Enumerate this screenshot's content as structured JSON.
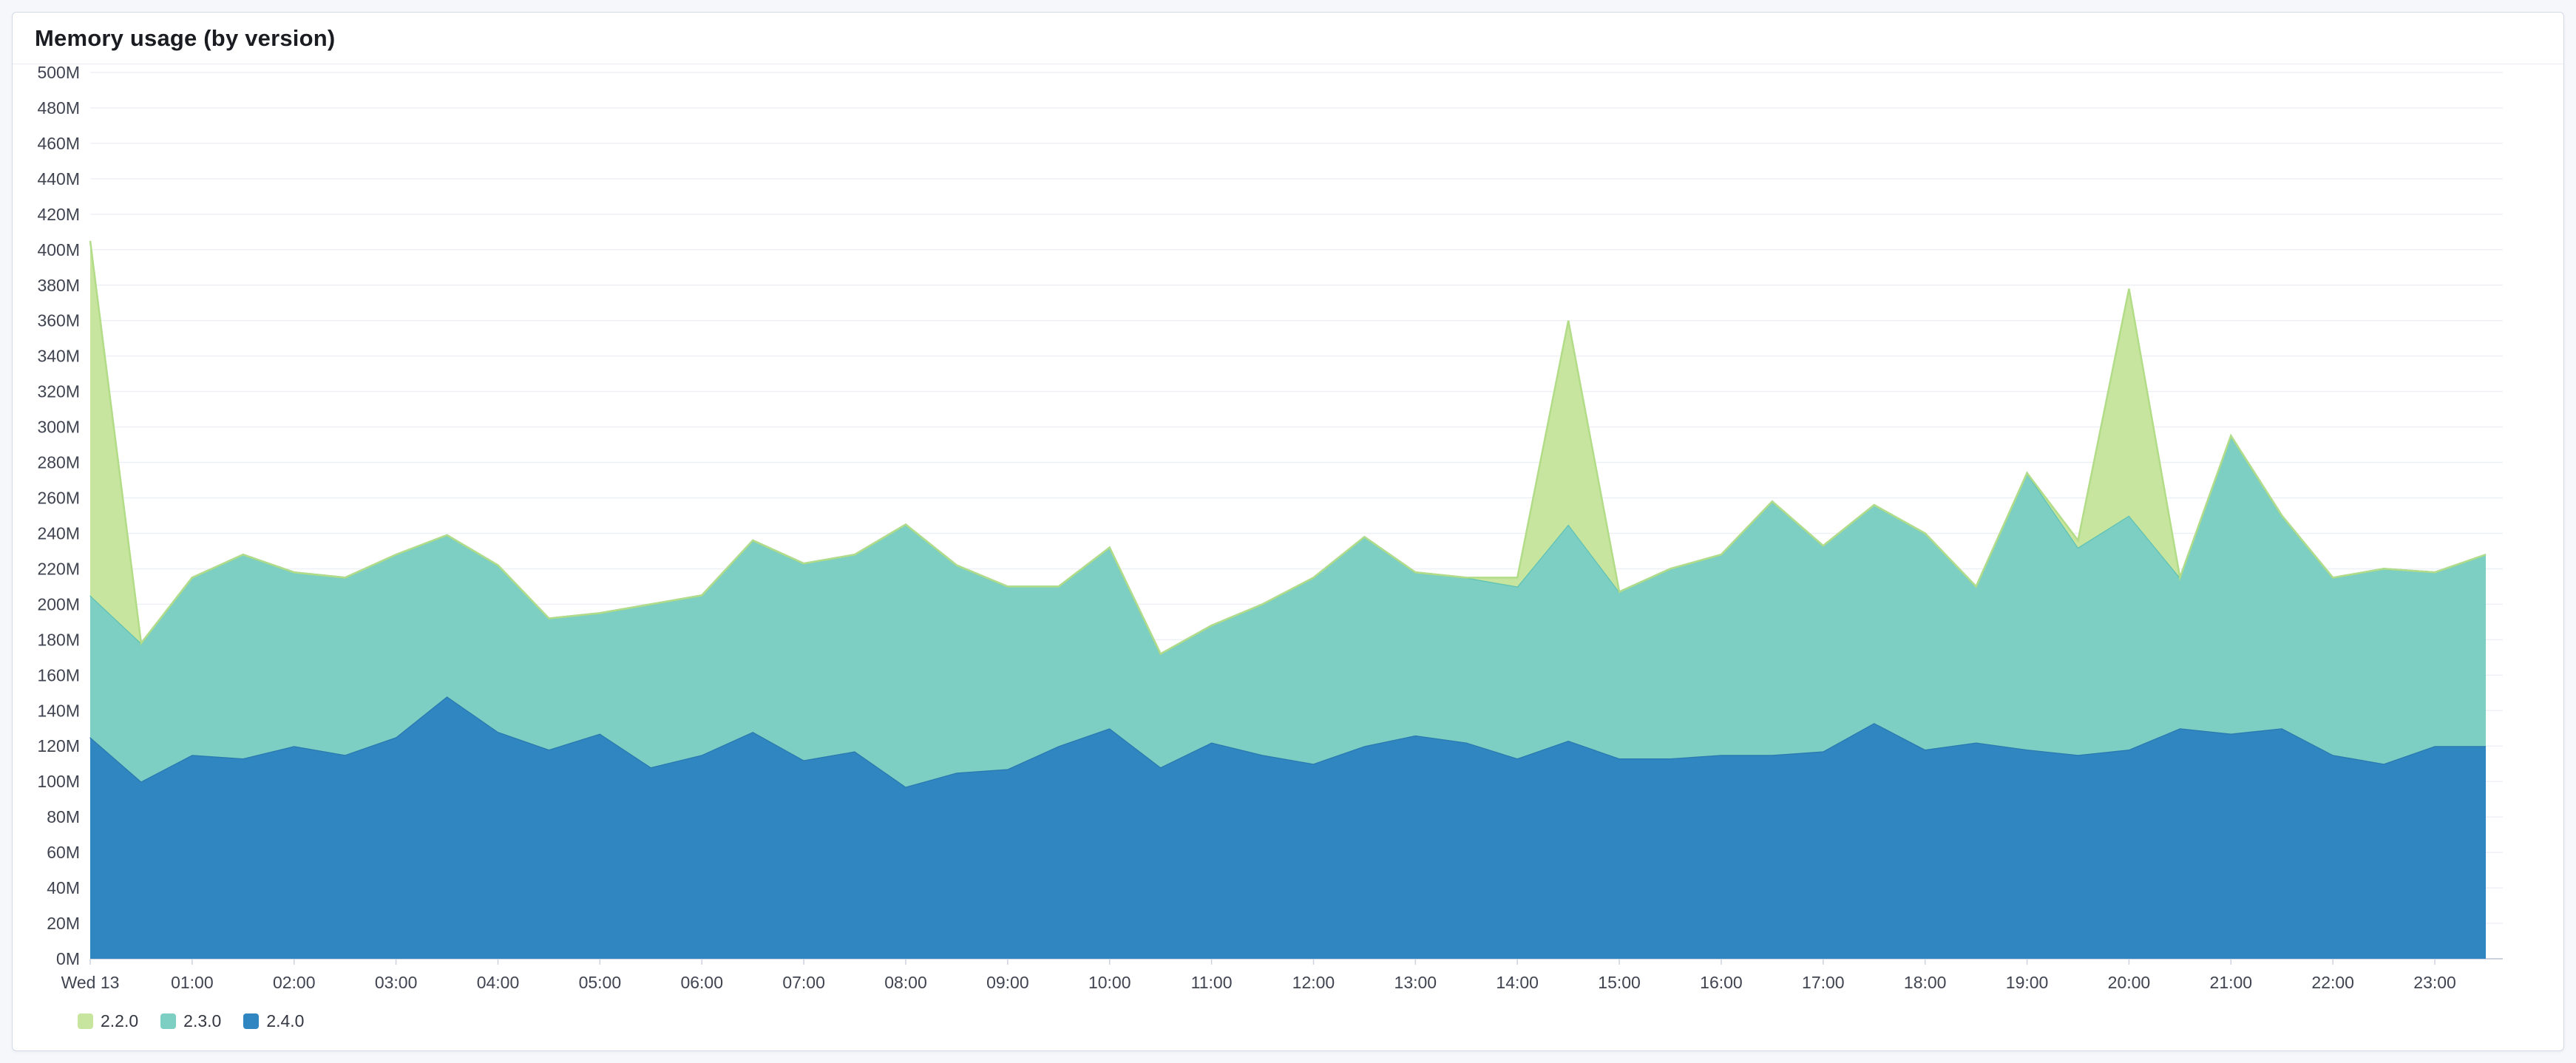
{
  "page": {
    "background": "#f5f7fa",
    "panel_background": "#ffffff",
    "panel_border": "#d3dae6"
  },
  "panel": {
    "title": "Memory usage (by version)"
  },
  "chart_data": {
    "type": "area",
    "stacked": true,
    "title": "Memory usage (by version)",
    "x_interval_minutes": 30,
    "x_tick_labels": [
      "Wed 13",
      "01:00",
      "02:00",
      "03:00",
      "04:00",
      "05:00",
      "06:00",
      "07:00",
      "08:00",
      "09:00",
      "10:00",
      "11:00",
      "12:00",
      "13:00",
      "14:00",
      "15:00",
      "16:00",
      "17:00",
      "18:00",
      "19:00",
      "20:00",
      "21:00",
      "22:00",
      "23:00"
    ],
    "y_ticks": [
      "0M",
      "20M",
      "40M",
      "60M",
      "80M",
      "100M",
      "120M",
      "140M",
      "160M",
      "180M",
      "200M",
      "220M",
      "240M",
      "260M",
      "280M",
      "300M",
      "320M",
      "340M",
      "360M",
      "380M",
      "400M",
      "420M",
      "440M",
      "460M",
      "480M",
      "500M"
    ],
    "ylim": [
      0,
      500
    ],
    "y_unit": "M",
    "grid": "horizontal",
    "legend_position": "bottom-left",
    "stack_order_bottom_to_top": [
      "2.4.0",
      "2.3.0",
      "2.2.0"
    ],
    "series": [
      {
        "name": "2.2.0",
        "color": "#c7e59e",
        "line_color": "#b2dc87",
        "values": [
          200,
          0,
          0,
          0,
          0,
          0,
          0,
          0,
          0,
          0,
          0,
          0,
          0,
          0,
          0,
          0,
          0,
          0,
          0,
          0,
          0,
          0,
          0,
          0,
          0,
          0,
          0,
          0,
          5,
          115,
          0,
          0,
          0,
          0,
          0,
          0,
          0,
          0,
          0,
          4,
          128,
          0,
          0,
          0,
          0,
          0,
          0,
          0
        ]
      },
      {
        "name": "2.3.0",
        "color": "#7dcec3",
        "line_color": "#5fc2b4",
        "values": [
          80,
          78,
          100,
          115,
          98,
          100,
          103,
          91,
          94,
          74,
          68,
          92,
          90,
          108,
          111,
          111,
          148,
          117,
          103,
          90,
          102,
          64,
          66,
          85,
          105,
          118,
          92,
          93,
          97,
          122,
          94,
          107,
          113,
          143,
          116,
          123,
          122,
          88,
          156,
          117,
          132,
          85,
          168,
          120,
          100,
          110,
          98,
          108
        ]
      },
      {
        "name": "2.4.0",
        "color": "#2f86c1",
        "line_color": "#2a79af",
        "values": [
          125,
          100,
          115,
          113,
          120,
          115,
          125,
          148,
          128,
          118,
          127,
          108,
          115,
          128,
          112,
          117,
          97,
          105,
          107,
          120,
          130,
          108,
          122,
          115,
          110,
          120,
          126,
          122,
          113,
          123,
          113,
          113,
          115,
          115,
          117,
          133,
          118,
          122,
          118,
          115,
          118,
          130,
          127,
          130,
          115,
          110,
          120,
          120
        ]
      }
    ]
  }
}
